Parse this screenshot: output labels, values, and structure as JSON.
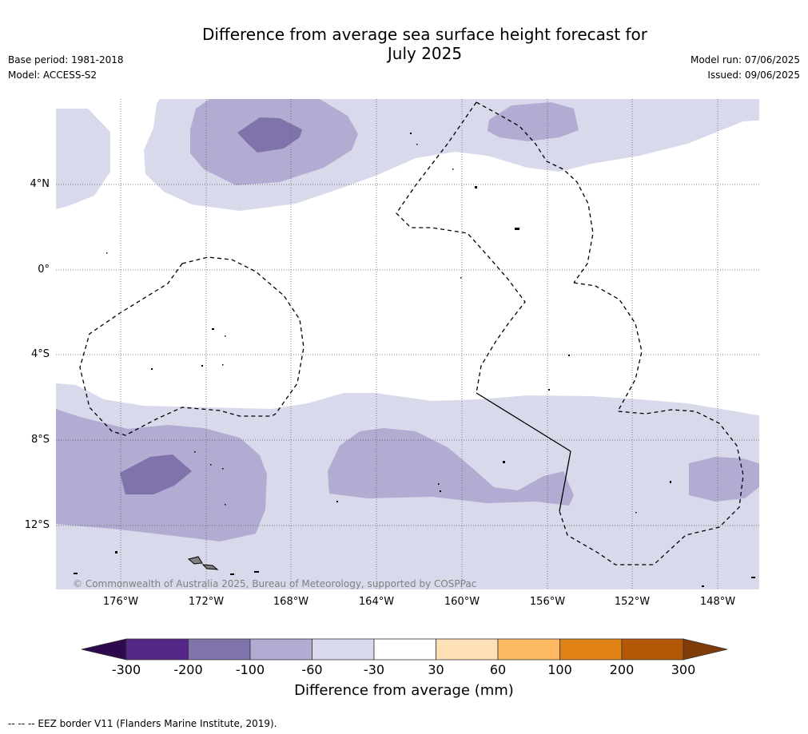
{
  "title_line1": "Difference from average sea surface height forecast for",
  "title_line2": "July 2025",
  "base_period": "Base period: 1981-2018",
  "model": "Model: ACCESS-S2",
  "model_run": "Model run: 07/06/2025",
  "issued": "Issued: 09/06/2025",
  "copyright": "© Commonwealth of Australia 2025, Bureau of Meteorology, supported by COSPPac",
  "lat_labels": [
    "4°N",
    "0°",
    "4°S",
    "8°S",
    "12°S"
  ],
  "lon_labels": [
    "176°W",
    "172°W",
    "168°W",
    "164°W",
    "160°W",
    "156°W",
    "152°W",
    "148°W"
  ],
  "colorbar": {
    "title": "Difference from average (mm)",
    "tick_labels": [
      "-300",
      "-200",
      "-100",
      "-60",
      "-30",
      "30",
      "60",
      "100",
      "200",
      "300"
    ],
    "colors": [
      "#2d0a4e",
      "#542788",
      "#8073ac",
      "#b2abd2",
      "#d8daeb",
      "#ffffff",
      "#fee0b6",
      "#fdb863",
      "#e08214",
      "#b35806",
      "#7f3b08"
    ]
  },
  "footnote": "--  --  -- EEZ border V11 (Flanders Marine Institute, 2019).",
  "legend_colors": {
    "light": "#d8daeb",
    "medium": "#b2abd2",
    "dark": "#8073ac"
  }
}
